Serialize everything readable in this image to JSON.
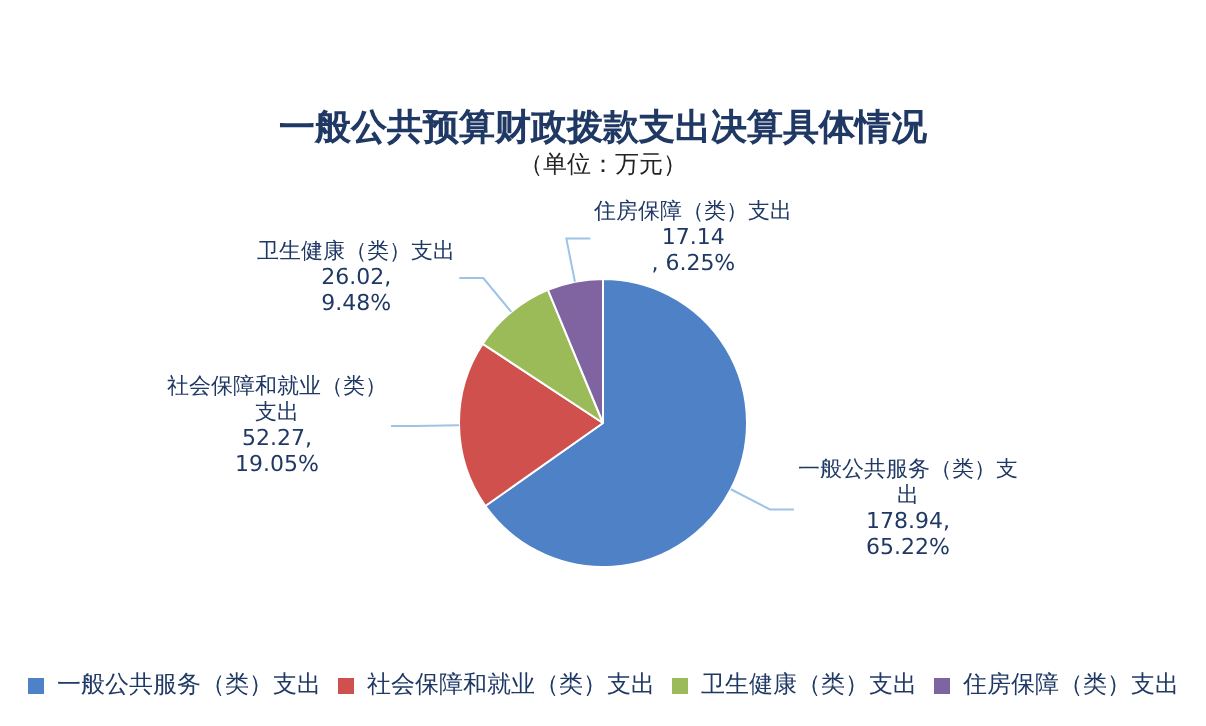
{
  "chart_data": {
    "type": "pie",
    "title": "一般公共预算财政拨款支出决算具体情况",
    "subtitle": "（单位：万元）",
    "categories": [
      "一般公共服务（类）支出",
      "社会保障和就业（类）支出",
      "卫生健康（类）支出",
      "住房保障（类）支出"
    ],
    "values": [
      178.94,
      52.27,
      26.02,
      17.14
    ],
    "colors": [
      "#4f81c7",
      "#d0504d",
      "#9bbb59",
      "#8064a2"
    ],
    "value_labels": [
      "178.94,\n65.22%",
      "52.27,\n19.05%",
      "26.02,\n9.48%",
      "17.14\n, 6.25%"
    ],
    "legend": "bottom"
  }
}
